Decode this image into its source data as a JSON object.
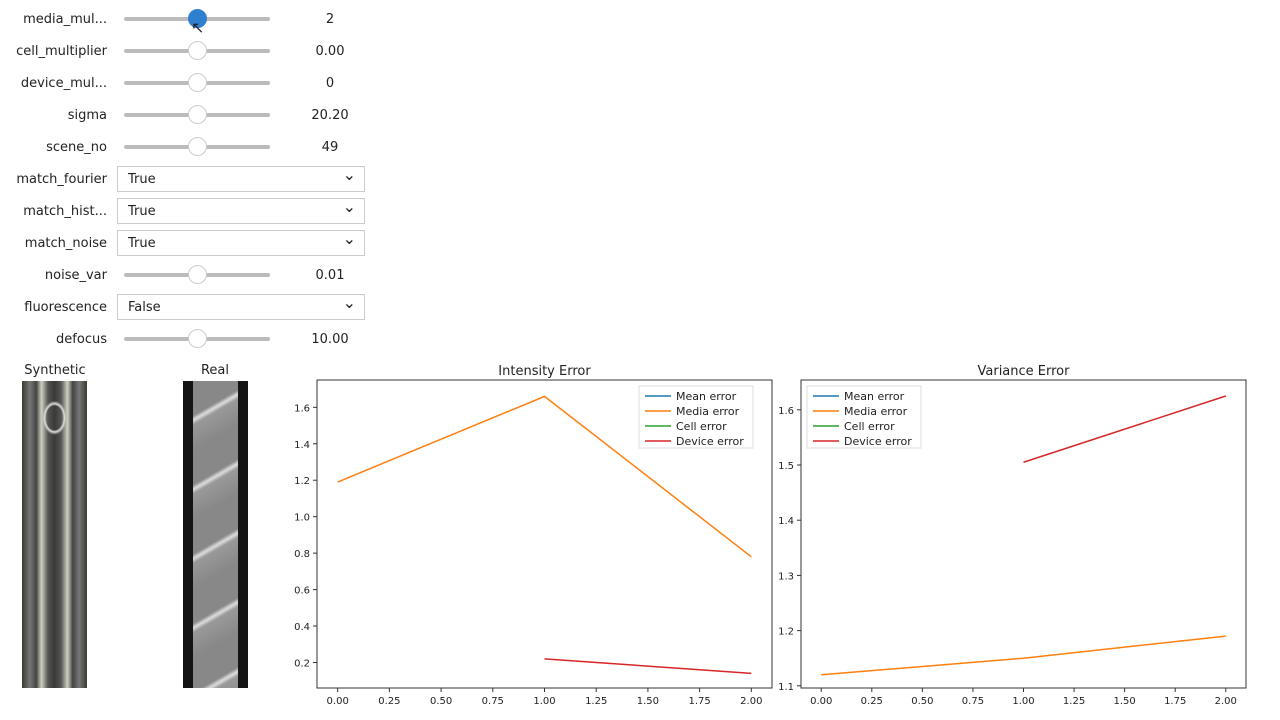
{
  "controls": [
    {
      "type": "slider",
      "label": "media_mul...",
      "value": "2",
      "level": 0.5,
      "active": true
    },
    {
      "type": "slider",
      "label": "cell_multiplier",
      "value": "0.00",
      "level": 0.5
    },
    {
      "type": "slider",
      "label": "device_mul...",
      "value": "0",
      "level": 0.5
    },
    {
      "type": "slider",
      "label": "sigma",
      "value": "20.20",
      "level": 0.5
    },
    {
      "type": "slider",
      "label": "scene_no",
      "value": "49",
      "level": 0.5
    },
    {
      "type": "select",
      "label": "match_fourier",
      "value": "True"
    },
    {
      "type": "select",
      "label": "match_hist...",
      "value": "True"
    },
    {
      "type": "select",
      "label": "match_noise",
      "value": "True"
    },
    {
      "type": "slider",
      "label": "noise_var",
      "value": "0.01",
      "level": 0.5
    },
    {
      "type": "select",
      "label": "fluorescence",
      "value": "False"
    },
    {
      "type": "slider",
      "label": "defocus",
      "value": "10.00",
      "level": 0.5
    }
  ],
  "images": {
    "synthetic": "Synthetic",
    "real": "Real"
  },
  "legend": [
    "Mean error",
    "Media error",
    "Cell error",
    "Device error"
  ],
  "colors": {
    "Mean error": "#1f77b4",
    "Media error": "#ff7f0e",
    "Cell error": "#2ca02c",
    "Device error": "#d62728",
    "slider_active": "#2f7fd0"
  },
  "chart_data": [
    {
      "type": "line",
      "title": "Intensity Error",
      "xlim": [
        -0.1,
        2.1
      ],
      "ylim": [
        0.06,
        1.75
      ],
      "xticks": [
        "0.00",
        "0.25",
        "0.50",
        "0.75",
        "1.00",
        "1.25",
        "1.50",
        "1.75",
        "2.00"
      ],
      "yticks": [
        "0.2",
        "0.4",
        "0.6",
        "0.8",
        "1.0",
        "1.2",
        "1.4",
        "1.6"
      ],
      "legend": "top-right",
      "series": [
        {
          "name": "Media error",
          "x": [
            0,
            1,
            2
          ],
          "y": [
            1.19,
            1.66,
            0.78
          ]
        },
        {
          "name": "Device error",
          "x": [
            1,
            2
          ],
          "y": [
            0.22,
            0.14
          ]
        }
      ]
    },
    {
      "type": "line",
      "title": "Variance Error",
      "xlim": [
        -0.1,
        2.1
      ],
      "ylim": [
        1.096,
        1.654
      ],
      "xticks": [
        "0.00",
        "0.25",
        "0.50",
        "0.75",
        "1.00",
        "1.25",
        "1.50",
        "1.75",
        "2.00"
      ],
      "yticks": [
        "1.1",
        "1.2",
        "1.3",
        "1.4",
        "1.5",
        "1.6"
      ],
      "legend": "top-left",
      "series": [
        {
          "name": "Media error",
          "x": [
            0,
            1,
            2
          ],
          "y": [
            1.12,
            1.15,
            1.19
          ]
        },
        {
          "name": "Device error",
          "x": [
            1,
            2
          ],
          "y": [
            1.505,
            1.625
          ]
        }
      ]
    }
  ]
}
